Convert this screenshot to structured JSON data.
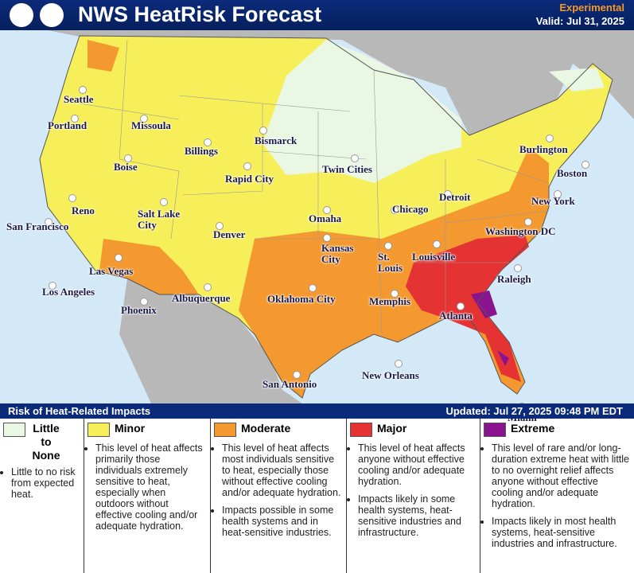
{
  "header": {
    "title": "NWS HeatRisk Forecast",
    "status": "Experimental",
    "valid": "Valid: Jul 31, 2025"
  },
  "map": {
    "cities": [
      "Seattle",
      "Portland",
      "Missoula",
      "Billings",
      "Bismarck",
      "Boise",
      "Rapid City",
      "Twin Cities",
      "Burlington",
      "Boston",
      "Reno",
      "Salt Lake City",
      "San Francisco",
      "Denver",
      "Omaha",
      "Chicago",
      "Detroit",
      "New York",
      "Washington DC",
      "Kansas City",
      "St. Louis",
      "Louisville",
      "Las Vegas",
      "Los Angeles",
      "Albuquerque",
      "Oklahoma City",
      "Raleigh",
      "Memphis",
      "Atlanta",
      "Phoenix",
      "San Antonio",
      "New Orleans",
      "Miami"
    ]
  },
  "legend": {
    "title": "Risk of Heat-Related Impacts",
    "updated": "Updated: Jul 27, 2025 09:48 PM EDT",
    "levels": [
      {
        "name": "Little to None",
        "color": "#e9f7e3",
        "bullets": [
          "Little to no risk from expected heat."
        ]
      },
      {
        "name": "Minor",
        "color": "#f7ef5a",
        "bullets": [
          "This level of heat affects primarily those individuals extremely sensitive to heat, especially when outdoors without effective cooling and/or adequate hydration."
        ]
      },
      {
        "name": "Moderate",
        "color": "#f4992f",
        "bullets": [
          "This level of heat affects most individuals sensitive to heat, especially those without effective cooling and/or adequate hydration.",
          "Impacts possible in some health systems and in heat-sensitive industries."
        ]
      },
      {
        "name": "Major",
        "color": "#e53232",
        "bullets": [
          "This level of heat affects anyone without effective cooling and/or adequate hydration.",
          "Impacts likely in some health systems, heat-sensitive industries and infrastructure."
        ]
      },
      {
        "name": "Extreme",
        "color": "#8a1490",
        "bullets": [
          "This level of rare and/or long-duration extreme heat with little to no overnight relief affects anyone without effective cooling and/or adequate hydration.",
          "Impacts likely in most health systems, heat-sensitive industries and infrastructure."
        ]
      }
    ]
  }
}
